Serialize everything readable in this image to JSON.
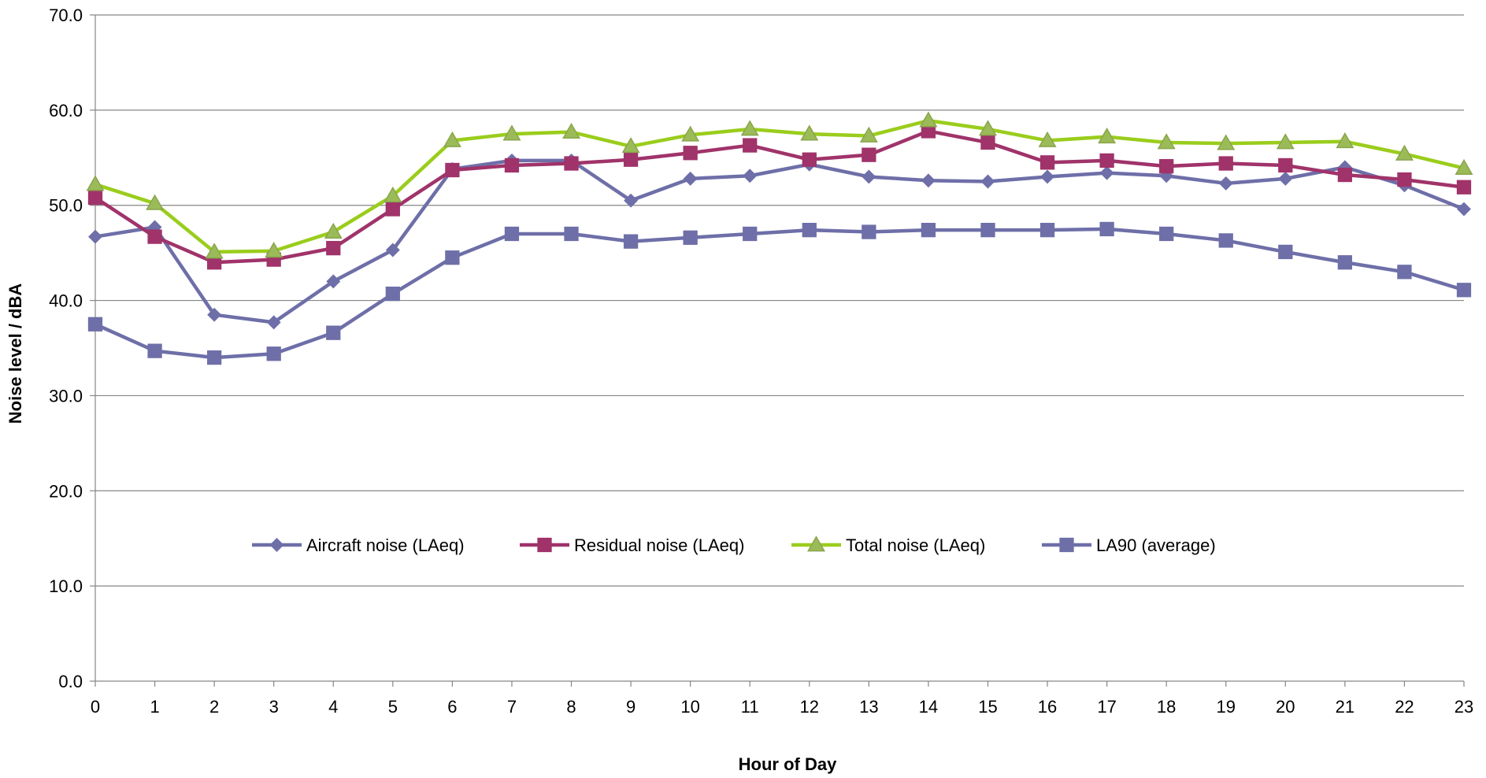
{
  "chart_data": {
    "type": "line",
    "title": "",
    "xlabel": "Hour of Day",
    "ylabel": "Noise level / dBA",
    "x": [
      0,
      1,
      2,
      3,
      4,
      5,
      6,
      7,
      8,
      9,
      10,
      11,
      12,
      13,
      14,
      15,
      16,
      17,
      18,
      19,
      20,
      21,
      22,
      23
    ],
    "x_tick_labels": [
      "0",
      "1",
      "2",
      "3",
      "4",
      "5",
      "6",
      "7",
      "8",
      "9",
      "10",
      "11",
      "12",
      "13",
      "14",
      "15",
      "16",
      "17",
      "18",
      "19",
      "20",
      "21",
      "22",
      "23"
    ],
    "ylim": [
      0,
      70
    ],
    "y_tick_labels": [
      "0.0",
      "10.0",
      "20.0",
      "30.0",
      "40.0",
      "50.0",
      "60.0",
      "70.0"
    ],
    "grid": "horizontal",
    "legend_position": "inside-lower-center",
    "series": [
      {
        "name": "Aircraft noise (LAeq)",
        "color": "#6E6FA8",
        "marker": "diamond",
        "values": [
          46.7,
          47.7,
          38.5,
          37.7,
          42.0,
          45.3,
          53.8,
          54.7,
          54.7,
          50.5,
          52.8,
          53.1,
          54.3,
          53.0,
          52.6,
          52.5,
          53.0,
          53.4,
          53.1,
          52.3,
          52.8,
          54.0,
          52.1,
          49.6
        ]
      },
      {
        "name": "Residual noise (LAeq)",
        "color": "#A0336A",
        "marker": "square",
        "values": [
          50.8,
          46.7,
          44.0,
          44.3,
          45.5,
          49.6,
          53.7,
          54.2,
          54.4,
          54.8,
          55.5,
          56.3,
          54.8,
          55.3,
          57.8,
          56.6,
          54.5,
          54.7,
          54.1,
          54.4,
          54.2,
          53.2,
          52.7,
          51.9
        ]
      },
      {
        "name": "Total noise (LAeq)",
        "color": "#9ACD1C",
        "marker_fill": "#9BBB59",
        "marker": "triangle",
        "values": [
          52.2,
          50.2,
          45.1,
          45.2,
          47.2,
          51.0,
          56.8,
          57.5,
          57.7,
          56.2,
          57.4,
          58.0,
          57.5,
          57.3,
          58.9,
          58.0,
          56.8,
          57.2,
          56.6,
          56.5,
          56.6,
          56.7,
          55.4,
          53.9
        ]
      },
      {
        "name": "LA90 (average)",
        "color": "#6E6FA8",
        "marker": "square",
        "values": [
          37.5,
          34.7,
          34.0,
          34.4,
          36.6,
          40.7,
          44.5,
          47.0,
          47.0,
          46.2,
          46.6,
          47.0,
          47.4,
          47.2,
          47.4,
          47.4,
          47.4,
          47.5,
          47.0,
          46.3,
          45.1,
          44.0,
          43.0,
          41.1
        ]
      }
    ]
  }
}
